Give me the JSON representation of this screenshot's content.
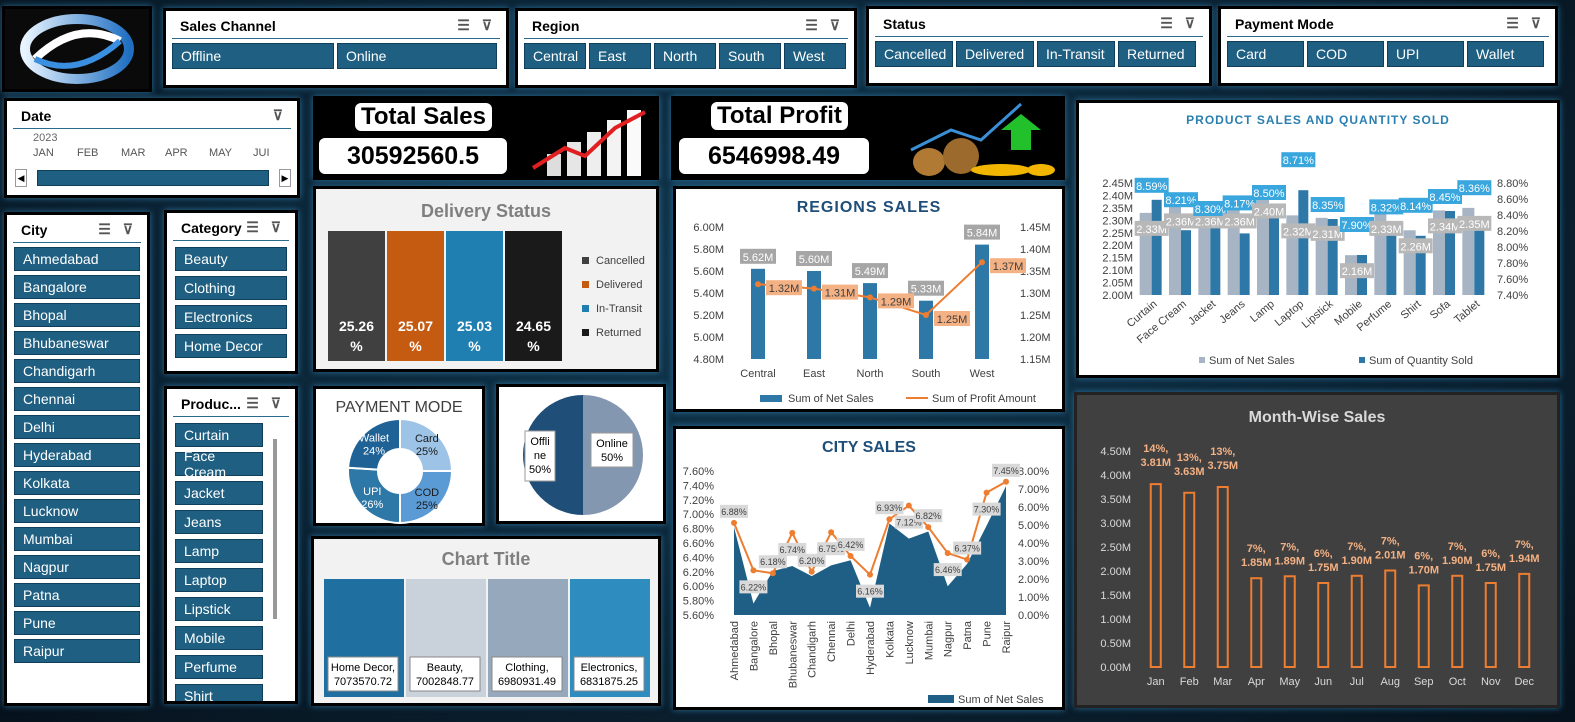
{
  "slicers": {
    "sales_channel": {
      "title": "Sales Channel",
      "items": [
        "Offline",
        "Online"
      ]
    },
    "region": {
      "title": "Region",
      "items": [
        "Central",
        "East",
        "North",
        "South",
        "West"
      ]
    },
    "status": {
      "title": "Status",
      "items": [
        "Cancelled",
        "Delivered",
        "In-Transit",
        "Returned"
      ]
    },
    "payment_mode": {
      "title": "Payment Mode",
      "items": [
        "Card",
        "COD",
        "UPI",
        "Wallet"
      ]
    },
    "date": {
      "title": "Date",
      "year": "2023",
      "months": [
        "JAN",
        "FEB",
        "MAR",
        "APR",
        "MAY",
        "JUI"
      ]
    },
    "city": {
      "title": "City",
      "items": [
        "Ahmedabad",
        "Bangalore",
        "Bhopal",
        "Bhubaneswar",
        "Chandigarh",
        "Chennai",
        "Delhi",
        "Hyderabad",
        "Kolkata",
        "Lucknow",
        "Mumbai",
        "Nagpur",
        "Patna",
        "Pune",
        "Raipur"
      ]
    },
    "category": {
      "title": "Category",
      "items": [
        "Beauty",
        "Clothing",
        "Electronics",
        "Home Decor"
      ]
    },
    "product": {
      "title": "Produc...",
      "items": [
        "Curtain",
        "Face Cream",
        "Jacket",
        "Jeans",
        "Lamp",
        "Laptop",
        "Lipstick",
        "Mobile",
        "Perfume",
        "Shirt"
      ]
    }
  },
  "kpis": {
    "total_sales": {
      "label": "Total Sales",
      "value": "30592560.5"
    },
    "total_profit": {
      "label": "Total Profit",
      "value": "6546998.49"
    }
  },
  "colors": {
    "accent": "#1e5f82",
    "orange": "#ed7d31",
    "panel_dark": "#404040"
  },
  "chart_data": [
    {
      "id": "delivery_status",
      "type": "bar",
      "title": "Delivery Status",
      "categories": [
        "Cancelled",
        "Delivered",
        "In-Transit",
        "Returned"
      ],
      "labels": [
        "25.26 %",
        "25.07 %",
        "25.03 %",
        "24.65 %"
      ],
      "values": [
        25.26,
        25.07,
        25.03,
        24.65
      ],
      "legend": [
        "Cancelled",
        "Delivered",
        "In-Transit",
        "Returned"
      ],
      "colors": [
        "#404040",
        "#c55a11",
        "#1f7fb0",
        "#1a1a1a"
      ]
    },
    {
      "id": "regions_sales",
      "type": "bar",
      "title": "REGIONS SALES",
      "categories": [
        "Central",
        "East",
        "North",
        "South",
        "West"
      ],
      "series": [
        {
          "name": "Sum of Net Sales",
          "values": [
            5.62,
            5.6,
            5.49,
            5.33,
            5.84
          ],
          "labels": [
            "5.62M",
            "5.60M",
            "5.49M",
            "5.33M",
            "5.84M"
          ]
        },
        {
          "name": "Sum of Profit Amount",
          "values": [
            1.32,
            1.31,
            1.29,
            1.25,
            1.37
          ],
          "labels": [
            "1.32M",
            "1.31M",
            "1.29M",
            "1.25M",
            "1.37M"
          ]
        }
      ],
      "y_ticks": [
        "6.00M",
        "5.80M",
        "5.60M",
        "5.40M",
        "5.20M",
        "5.00M",
        "4.80M"
      ],
      "ylim": [
        4.8,
        6.0
      ],
      "y2_ticks": [
        "1.45M",
        "1.40M",
        "1.35M",
        "1.30M",
        "1.25M",
        "1.20M",
        "1.15M"
      ],
      "y2lim": [
        1.15,
        1.45
      ]
    },
    {
      "id": "product_sales",
      "type": "bar",
      "title": "PRODUCT SALES AND QUANTITY SOLD",
      "categories": [
        "Curtain",
        "Face Cream",
        "Jacket",
        "Jeans",
        "Lamp",
        "Laptop",
        "Lipstick",
        "Mobile",
        "Perfume",
        "Shirt",
        "Sofa",
        "Tablet"
      ],
      "series": [
        {
          "name": "Sum of Net Sales",
          "values": [
            2.33,
            2.36,
            2.36,
            2.36,
            2.4,
            2.32,
            2.31,
            2.16,
            2.33,
            2.26,
            2.34,
            2.35
          ],
          "labels": [
            "2.33M",
            "2.36M",
            "2.36M",
            "2.36M",
            "2.40M",
            "2.32M",
            "2.31M",
            "2.16M",
            "2.33M",
            "2.26M",
            "2.34M",
            "2.35M"
          ]
        },
        {
          "name": "Sum of Quantity Sold",
          "values": [
            8.59,
            8.21,
            8.3,
            8.17,
            8.5,
            8.71,
            8.35,
            7.9,
            8.32,
            8.14,
            8.45,
            8.36
          ],
          "labels": [
            "8.59%",
            "8.21%",
            "8.30%",
            "8.17%",
            "8.50%",
            "8.71%",
            "8.35%",
            "7.90%",
            "8.32%",
            "8.14%",
            "8.45%",
            "8.36%"
          ]
        }
      ],
      "y_ticks": [
        "2.45M",
        "2.40M",
        "2.35M",
        "2.30M",
        "2.25M",
        "2.20M",
        "2.15M",
        "2.10M",
        "2.05M",
        "2.00M"
      ],
      "ylim": [
        2.0,
        2.45
      ],
      "y2_ticks": [
        "8.80%",
        "8.60%",
        "8.40%",
        "8.20%",
        "8.00%",
        "7.80%",
        "7.60%",
        "7.40%"
      ],
      "y2lim": [
        7.4,
        8.8
      ]
    },
    {
      "id": "payment_mode",
      "type": "pie",
      "title": "PAYMENT MODE",
      "categories": [
        "Card",
        "COD",
        "UPI",
        "Wallet"
      ],
      "values": [
        25,
        25,
        26,
        24
      ],
      "labels": [
        "Card 25%",
        "COD 25%",
        "UPI 26%",
        "Wallet 24%"
      ]
    },
    {
      "id": "sales_channel",
      "type": "pie",
      "title": "",
      "categories": [
        "Offline",
        "Online"
      ],
      "values": [
        50,
        50
      ],
      "labels": [
        "Offli ne 50%",
        "Online 50%"
      ]
    },
    {
      "id": "category_sales",
      "type": "bar",
      "title": "Chart Title",
      "categories": [
        "Home Decor",
        "Beauty",
        "Clothing",
        "Electronics"
      ],
      "values": [
        7073570.72,
        7002848.77,
        6980931.49,
        6831875.25
      ],
      "labels": [
        "Home Decor, 7073570.72",
        "Beauty, 7002848.77",
        "Clothing, 6980931.49",
        "Electronics, 6831875.25"
      ]
    },
    {
      "id": "city_sales",
      "type": "area",
      "title": "CITY SALES",
      "categories": [
        "Ahmedabad",
        "Bangalore",
        "Bhopal",
        "Bhubaneswar",
        "Chandigarh",
        "Chennai",
        "Delhi",
        "Hyderabad",
        "Kolkata",
        "Lucknow",
        "Mumbai",
        "Nagpur",
        "Patna",
        "Pune",
        "Raipur"
      ],
      "series": [
        {
          "name": "Sum of Net Sales",
          "values": [
            6.88,
            6.22,
            6.27,
            6.74,
            6.2,
            6.75,
            6.42,
            6.16,
            6.93,
            7.12,
            6.82,
            6.46,
            6.37,
            7.3,
            7.45
          ]
        },
        {
          "name": "Sum of Profit Amount",
          "values": [
            6.88,
            6.22,
            6.18,
            6.74,
            6.2,
            6.75,
            6.42,
            6.16,
            6.93,
            7.12,
            6.82,
            6.46,
            6.37,
            7.3,
            7.45
          ],
          "labels": [
            "6.88%",
            "6.22%",
            "6.18%",
            "6.74%",
            "6.20%",
            "6.75%",
            "6.42%",
            "6.16%",
            "6.93%",
            "7.12%",
            "6.82%",
            "6.46%",
            "6.37%",
            "7.30%",
            "7.45%"
          ]
        }
      ],
      "y_ticks": [
        "7.60%",
        "7.40%",
        "7.20%",
        "7.00%",
        "6.80%",
        "6.60%",
        "6.40%",
        "6.20%",
        "6.00%",
        "5.80%",
        "5.60%"
      ],
      "ylim": [
        5.6,
        7.6
      ],
      "y2_ticks": [
        "8.00%",
        "7.00%",
        "6.00%",
        "5.00%",
        "4.00%",
        "3.00%",
        "2.00%",
        "1.00%",
        "0.00%"
      ],
      "y2lim": [
        0,
        8
      ]
    },
    {
      "id": "month_sales",
      "type": "bar",
      "title": "Month-Wise Sales",
      "categories": [
        "Jan",
        "Feb",
        "Mar",
        "Apr",
        "May",
        "Jun",
        "Jul",
        "Aug",
        "Sep",
        "Oct",
        "Nov",
        "Dec"
      ],
      "values": [
        3.81,
        3.63,
        3.75,
        1.85,
        1.89,
        1.75,
        1.9,
        2.01,
        1.7,
        1.9,
        1.75,
        1.94
      ],
      "labels": [
        "14%, 3.81M",
        "13%, 3.63M",
        "13%, 3.75M",
        "7%, 1.85M",
        "7%, 1.89M",
        "6%, 1.75M",
        "7%, 1.90M",
        "7%, 2.01M",
        "6%, 1.70M",
        "7%, 1.90M",
        "6%, 1.75M",
        "7%, 1.94M"
      ],
      "y_ticks": [
        "4.50M",
        "4.00M",
        "3.50M",
        "3.00M",
        "2.50M",
        "2.00M",
        "1.50M",
        "1.00M",
        "0.50M",
        "0.00M"
      ],
      "ylim": [
        0,
        4.5
      ]
    }
  ]
}
